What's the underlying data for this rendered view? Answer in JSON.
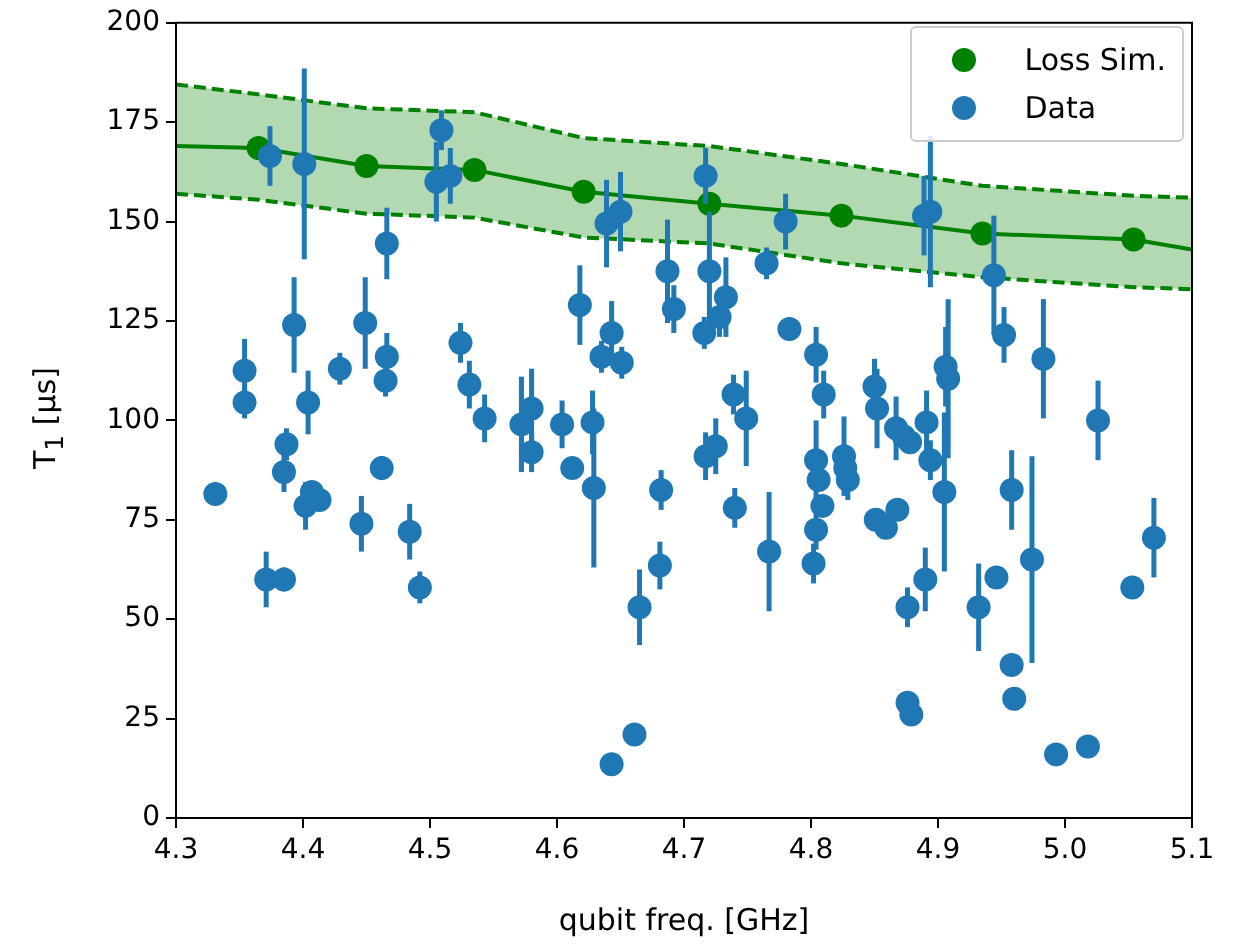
{
  "chart_data": {
    "type": "scatter",
    "xlabel": "qubit freq. [GHz]",
    "ylabel": "T$_{1}$ [μs]",
    "xlim": [
      4.3,
      5.1
    ],
    "xticks": [
      4.3,
      4.4,
      4.5,
      4.6,
      4.7,
      4.8,
      4.9,
      {
        "value": 5,
        "label": "5.0"
      },
      5.1
    ],
    "ylim": [
      0,
      200
    ],
    "yticks": [
      0,
      25,
      50,
      75,
      100,
      125,
      150,
      175,
      200
    ],
    "grid": false,
    "legend": "top right",
    "series": [
      {
        "type": "line",
        "color": "#008000",
        "marker": "none",
        "line_style": "solid",
        "x": [
          4.3,
          4.365,
          4.45,
          4.535,
          4.621,
          4.72,
          4.824,
          4.935,
          5.054,
          5.1
        ],
        "values": [
          169,
          168.5,
          164,
          163,
          157.5,
          154.5,
          151.5,
          147,
          145.5,
          143
        ],
        "lower": [
          157,
          155.5,
          152,
          151,
          146,
          144.5,
          139.5,
          136,
          133.5,
          133
        ],
        "upper": [
          184.5,
          182,
          178.5,
          177.5,
          171,
          169,
          164.5,
          159,
          156.5,
          156
        ]
      },
      {
        "type": "line",
        "color": "#008000",
        "marker": "none",
        "line_style": "dashed",
        "x": [
          4.3,
          4.365,
          4.45,
          4.535,
          4.621,
          4.72,
          4.824,
          4.935,
          5.054,
          5.1
        ],
        "values": [
          157,
          155.5,
          152,
          151,
          146,
          144.5,
          139.5,
          136,
          133.5,
          133
        ]
      },
      {
        "type": "line",
        "color": "#008000",
        "marker": "none",
        "line_style": "dashed",
        "x": [
          4.3,
          4.365,
          4.45,
          4.535,
          4.621,
          4.72,
          4.824,
          4.935,
          5.054,
          5.1
        ],
        "values": [
          184.5,
          182,
          178.5,
          177.5,
          171,
          169,
          164.5,
          159,
          156.5,
          156
        ]
      },
      {
        "name": "Loss Sim.",
        "color": "#008000",
        "marker": "circle",
        "x": [
          4.365,
          4.45,
          4.535,
          4.621,
          4.72,
          4.824,
          4.935,
          5.054
        ],
        "values": [
          168.5,
          164,
          163,
          157.5,
          154.5,
          151.5,
          147,
          145.5
        ]
      },
      {
        "name": "Data",
        "color": "#1f77b4",
        "marker": "circle",
        "x": [
          4.331,
          4.354,
          4.354,
          4.371,
          4.374,
          4.385,
          4.385,
          4.387,
          4.393,
          4.401,
          4.402,
          4.404,
          4.407,
          4.413,
          4.429,
          4.446,
          4.449,
          4.462,
          4.465,
          4.466,
          4.466,
          4.484,
          4.492,
          4.509,
          4.505,
          4.516,
          4.524,
          4.531,
          4.543,
          4.572,
          4.58,
          4.58,
          4.604,
          4.612,
          4.618,
          4.628,
          4.629,
          4.635,
          4.643,
          4.651,
          4.639,
          4.65,
          4.643,
          4.661,
          4.665,
          4.681,
          4.682,
          4.687,
          4.692,
          4.717,
          4.72,
          4.733,
          4.728,
          4.716,
          4.765,
          4.78,
          4.783,
          4.804,
          4.81,
          4.739,
          4.749,
          4.85,
          4.852,
          4.867,
          4.891,
          4.894,
          4.889,
          4.906,
          4.908,
          4.944,
          4.952,
          4.983,
          5.026,
          4.717,
          4.725,
          4.74,
          4.767,
          4.804,
          4.806,
          4.809,
          4.804,
          4.802,
          4.826,
          4.827,
          4.829,
          4.873,
          4.878,
          4.894,
          4.905,
          4.851,
          4.859,
          4.868,
          4.89,
          4.876,
          4.876,
          4.879,
          4.932,
          4.946,
          4.958,
          4.974,
          4.958,
          4.96,
          4.993,
          5.018,
          5.053,
          5.07
        ],
        "values": [
          81.5,
          112.5,
          104.5,
          60,
          166.5,
          60,
          87,
          94,
          124,
          164.5,
          78.5,
          104.5,
          82,
          80,
          113,
          74,
          124.5,
          88,
          110,
          116,
          144.5,
          72,
          58,
          173,
          160,
          161.5,
          119.5,
          109,
          100.5,
          99,
          103,
          92,
          99,
          88,
          129,
          99.5,
          83,
          116,
          122,
          114.5,
          149.5,
          152.5,
          13.5,
          21,
          53,
          63.5,
          82.5,
          137.5,
          128,
          161.5,
          137.5,
          131,
          126,
          122,
          139.5,
          150,
          123,
          116.5,
          106.5,
          106.5,
          100.5,
          108.5,
          103,
          98,
          99.5,
          152.5,
          151.5,
          113.5,
          110.5,
          136.5,
          121.5,
          115.5,
          100,
          91,
          93.5,
          78,
          67,
          90,
          85,
          78.5,
          72.5,
          64,
          91,
          88,
          85,
          96,
          94.5,
          90,
          82,
          75,
          73,
          77.5,
          60,
          53,
          29,
          26,
          53,
          60.5,
          82.5,
          65,
          38.5,
          30,
          16,
          18,
          58,
          70.5
        ],
        "errors": [
          null,
          8,
          4,
          7,
          7.5,
          3,
          5,
          4,
          12,
          24,
          6,
          8,
          null,
          null,
          4,
          7,
          11.5,
          3,
          4,
          6,
          9,
          7,
          4,
          5,
          10,
          7,
          5,
          6,
          6,
          12,
          10,
          5,
          6,
          null,
          10,
          8,
          20,
          4,
          8,
          4,
          11,
          10,
          null,
          null,
          9.5,
          6,
          5,
          13,
          6,
          7,
          15,
          10,
          5,
          4,
          4,
          7,
          null,
          7,
          6,
          5,
          12,
          7,
          10,
          8,
          8,
          19,
          10,
          10,
          20,
          15,
          7,
          15,
          10,
          6,
          7,
          5,
          15,
          10,
          null,
          null,
          5,
          5,
          10,
          null,
          5,
          null,
          null,
          5,
          20,
          null,
          null,
          null,
          8,
          5,
          null,
          null,
          11,
          null,
          10,
          26,
          null,
          null,
          null,
          null,
          2,
          10
        ]
      }
    ]
  }
}
